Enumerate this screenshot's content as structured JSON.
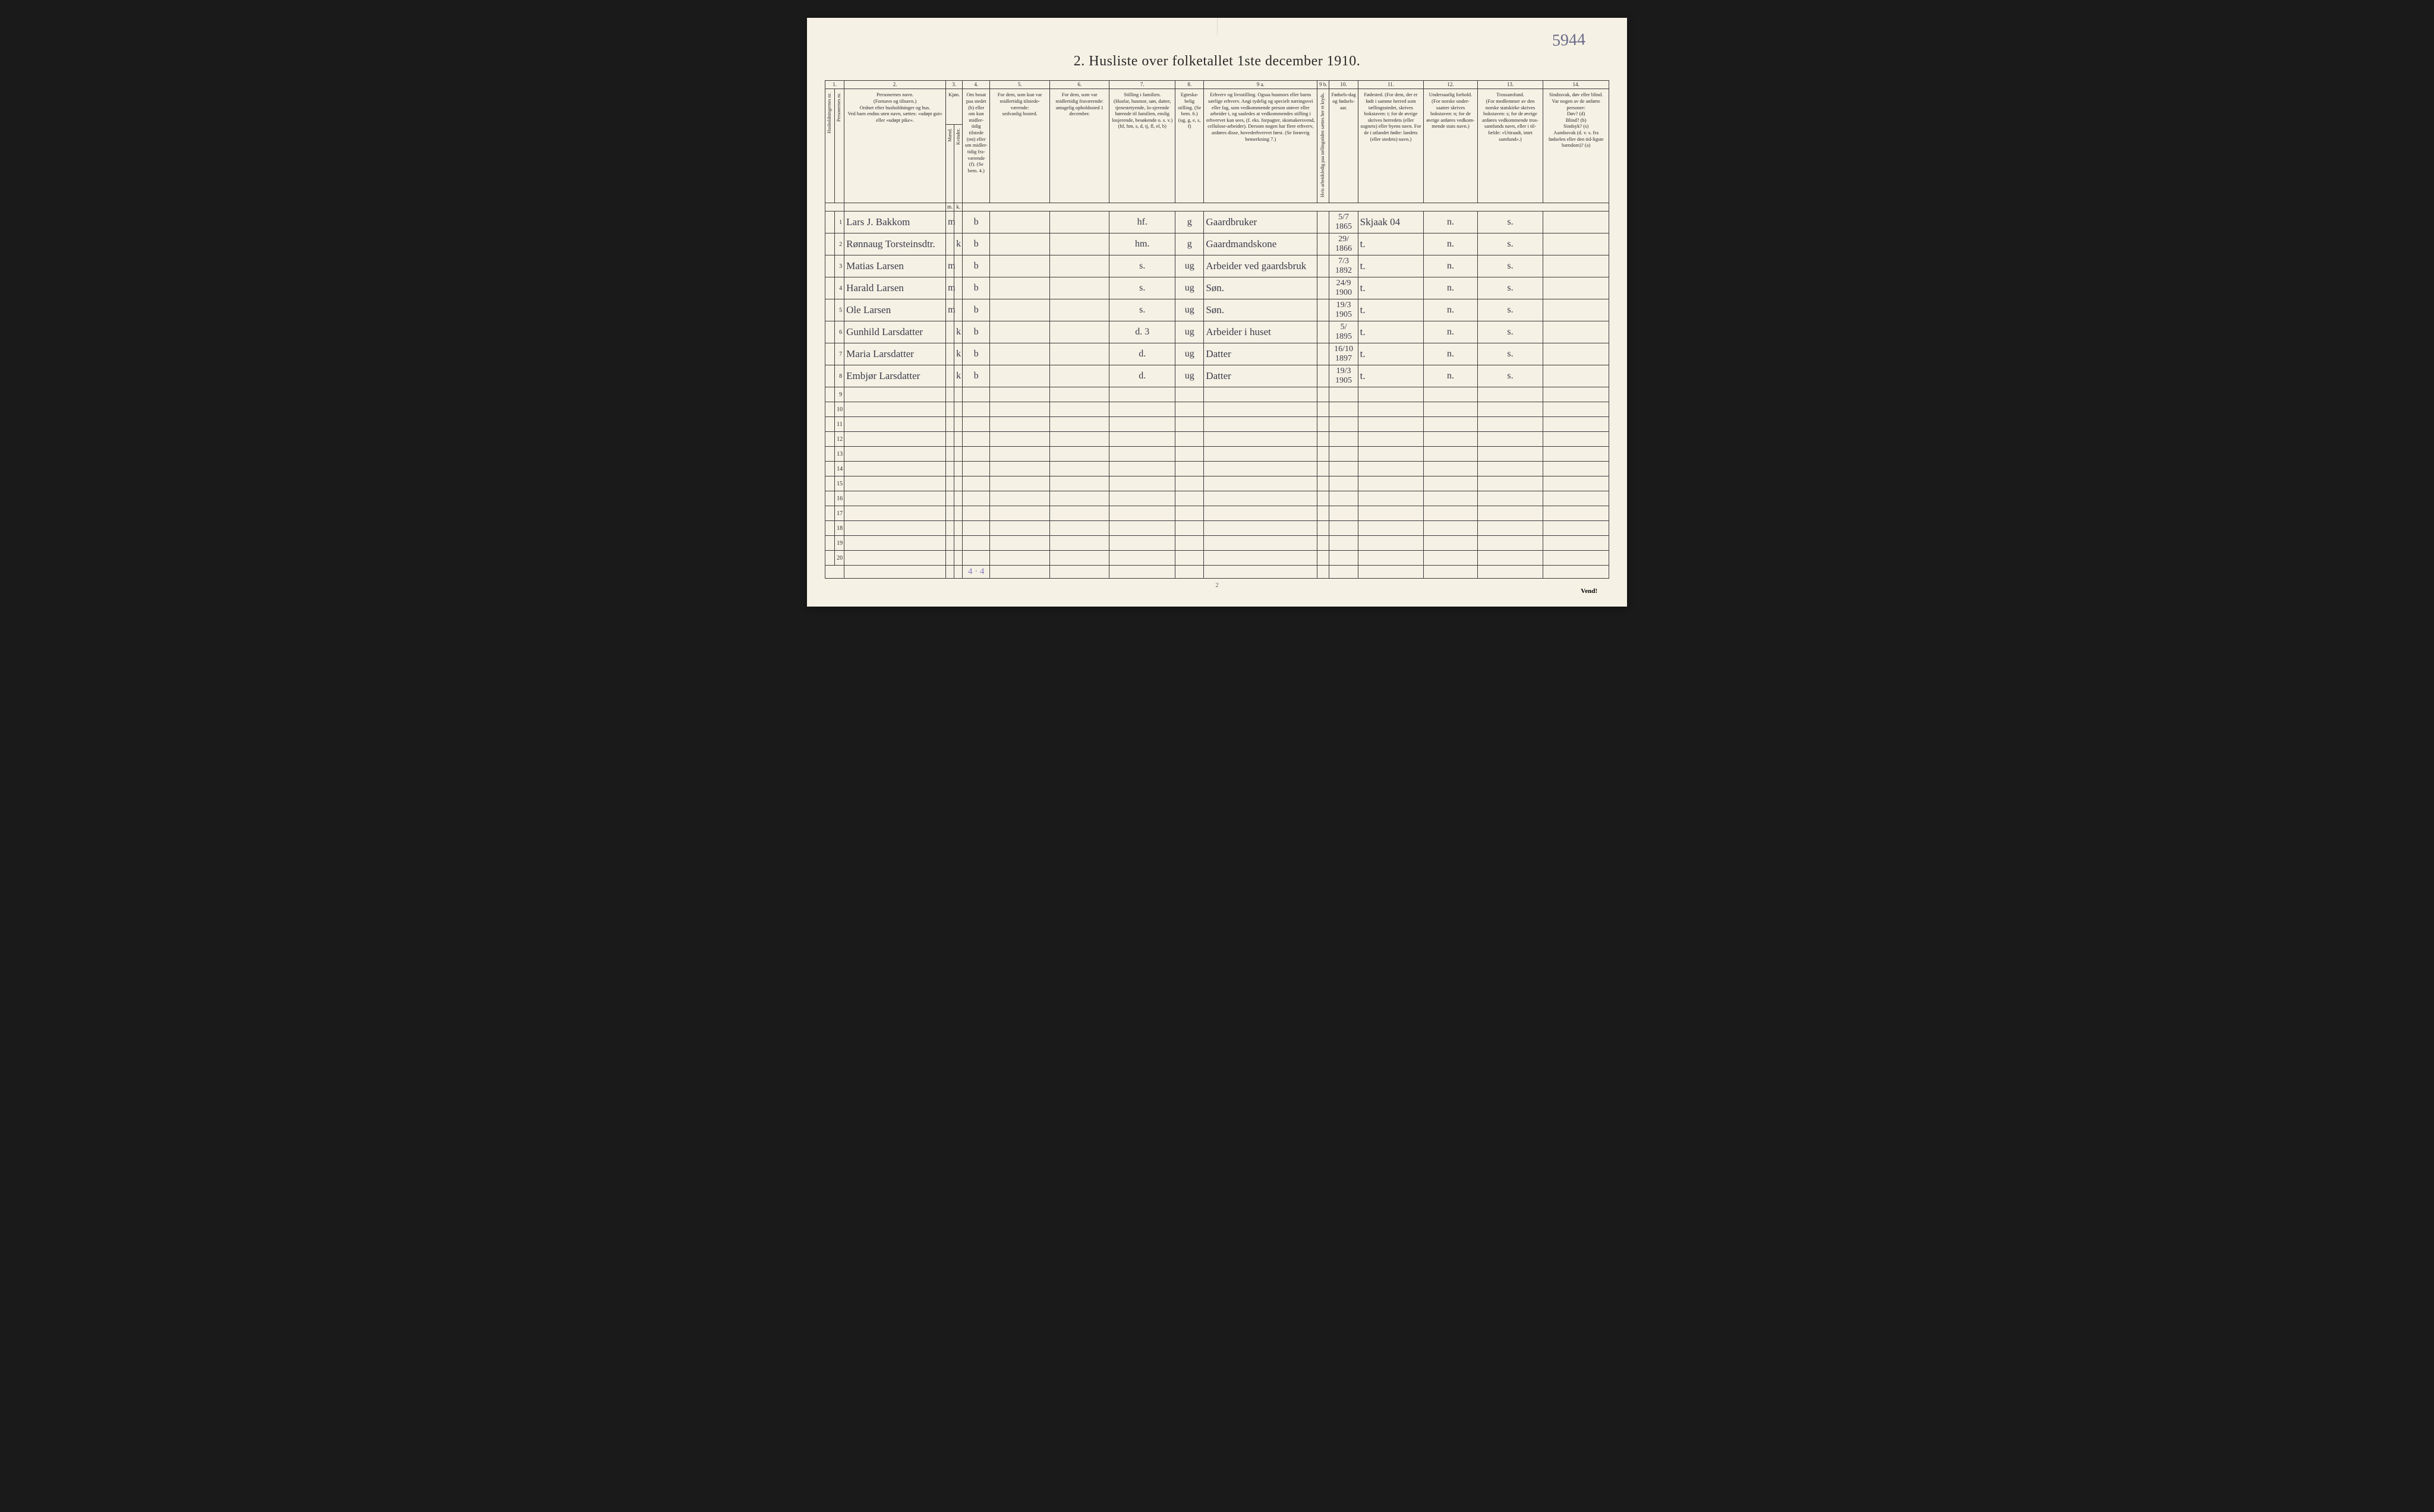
{
  "page": {
    "title": "2.  Husliste over folketallet 1ste december 1910.",
    "handwritten_number_topright": "5944",
    "page_number_bottom": "2",
    "vend_label": "Vend!",
    "background_color": "#f5f1e4",
    "border_color": "#3a3a3a",
    "handwriting_color": "#3a3a4a",
    "pencil_color": "#8a7ac0"
  },
  "column_numbers": [
    "1.",
    "2.",
    "3.",
    "4.",
    "5.",
    "6.",
    "7.",
    "8.",
    "9 a.",
    "9 b.",
    "10.",
    "11.",
    "12.",
    "13.",
    "14."
  ],
  "headers": {
    "c1a": "Husholdningernes nr.",
    "c1b": "Personernes nr.",
    "c2": "Personernes navn.\n(Fornavn og tilnavn.)\nOrdnet efter husholdninger og hus.\nVed barn endnu uten navn, sættes: «udøpt gut» eller «udøpt pike».",
    "c3": "Kjøn.",
    "c3a": "Mænd.",
    "c3b": "Kvinder.",
    "c3m": "m.",
    "c3k": "k.",
    "c4": "Om bosat paa stedet (b) eller om kun midler-tidig tilstede (mt) eller om midler-tidig fra-værende (f). (Se bem. 4.)",
    "c5": "For dem, som kun var midlertidig tilstede-værende:\nsedvanlig bosted.",
    "c6": "For dem, som var midlertidig fraværende:\nantagelig opholdssted 1 december.",
    "c7": "Stilling i familien.\n(Husfar, husmor, søn, datter, tjenestetyende, lo-sjerende hørende til familien, enslig losjerende, besøkende o. s. v.)\n(hf, hm, s, d, tj, fl, el, b)",
    "c8": "Egteska-belig stilling. (Se bem. 6.) (ug, g, e, s, f)",
    "c9a": "Erhverv og livsstilling.\nOgsaa husmors eller barns særlige erhverv. Angi tydelig og specielt næringsvei eller fag, som vedkommende person utøver eller arbeider i, og saaledes at vedkommendes stilling i erhvervet kan sees, (f. eks. forpagter, skomakersvend, cellulose-arbeider). Dersom nogen har flere erhverv, anføres disse, hovederhvervet først. (Se forøvrig bemerkning 7.)",
    "c9b": "Hvis arbeidsledig paa tællingstiden sættes her et kryds.",
    "c10": "Fødsels-dag og fødsels-aar.",
    "c11": "Fødested.\n(For dem, der er født i samme herred som tællingsstedet, skrives bokstaven: t; for de øvrige skrives herredets (eller sognets) eller byens navn. For de i utlandet fødte: landets (eller stedets) navn.)",
    "c12": "Undersaatlig forhold.\n(For norske under-saatter skrives bokstaven: n; for de øvrige anføres vedkom-mende stats navn.)",
    "c13": "Trossamfund.\n(For medlemmer av den norske statskirke skrives bokstaven: s; for de øvrige anføres vedkommende tros-samfunds navn, eller i til-fælde: «Uttraadt, intet samfund».)",
    "c14": "Sindssvak, døv eller blind.\nVar nogen av de anførte personer:\nDøv?        (d)\nBlind?      (b)\nSindsyk?  (s)\nAandssvak (d. v. s. fra fødselen eller den tid-ligste barndom)?  (a)"
  },
  "col_widths": {
    "c1a": 16,
    "c1b": 16,
    "c2": 170,
    "c3a": 14,
    "c3b": 14,
    "c4": 46,
    "c5": 100,
    "c6": 100,
    "c7": 110,
    "c8": 48,
    "c9a": 190,
    "c9b": 20,
    "c10": 48,
    "c11": 110,
    "c12": 90,
    "c13": 110,
    "c14": 110
  },
  "rows": [
    {
      "n": "1",
      "name": "Lars J. Bakkom",
      "m": "m",
      "k": "",
      "b": "b",
      "c5": "",
      "c6": "",
      "c7": "hf.",
      "c8": "g",
      "c9a": "Gaardbruker",
      "c9b": "",
      "c10": "5/7 1865",
      "c11": "Skjaak 04",
      "c12": "n.",
      "c13": "s.",
      "c14": ""
    },
    {
      "n": "2",
      "name": "Rønnaug Torsteinsdtr.",
      "m": "",
      "k": "k",
      "b": "b",
      "c5": "",
      "c6": "",
      "c7": "hm.",
      "c8": "g",
      "c9a": "Gaardmandskone",
      "c9b": "",
      "c10": "29/ 1866",
      "c11": "t.",
      "c12": "n.",
      "c13": "s.",
      "c14": ""
    },
    {
      "n": "3",
      "name": "Matias Larsen",
      "m": "m",
      "k": "",
      "b": "b",
      "c5": "",
      "c6": "",
      "c7": "s.",
      "c8": "ug",
      "c9a": "Arbeider ved gaardsbruk",
      "c9b": "",
      "c10": "7/3 1892",
      "c11": "t.",
      "c12": "n.",
      "c13": "s.",
      "c14": ""
    },
    {
      "n": "4",
      "name": "Harald Larsen",
      "m": "m",
      "k": "",
      "b": "b",
      "c5": "",
      "c6": "",
      "c7": "s.",
      "c8": "ug",
      "c9a": "Søn.",
      "c9b": "",
      "c10": "24/9 1900",
      "c11": "t.",
      "c12": "n.",
      "c13": "s.",
      "c14": ""
    },
    {
      "n": "5",
      "name": "Ole Larsen",
      "m": "m",
      "k": "",
      "b": "b",
      "c5": "",
      "c6": "",
      "c7": "s.",
      "c8": "ug",
      "c9a": "Søn.",
      "c9b": "",
      "c10": "19/3 1905",
      "c11": "t.",
      "c12": "n.",
      "c13": "s.",
      "c14": ""
    },
    {
      "n": "6",
      "name": "Gunhild Larsdatter",
      "m": "",
      "k": "k",
      "b": "b",
      "c5": "",
      "c6": "",
      "c7": "d.    3",
      "c8": "ug",
      "c9a": "Arbeider i huset",
      "c9b": "",
      "c10": "5/ 1895",
      "c11": "t.",
      "c12": "n.",
      "c13": "s.",
      "c14": ""
    },
    {
      "n": "7",
      "name": "Maria Larsdatter",
      "m": "",
      "k": "k",
      "b": "b",
      "c5": "",
      "c6": "",
      "c7": "d.",
      "c8": "ug",
      "c9a": "Datter",
      "c9b": "",
      "c10": "16/10 1897",
      "c11": "t.",
      "c12": "n.",
      "c13": "s.",
      "c14": ""
    },
    {
      "n": "8",
      "name": "Embjør Larsdatter",
      "m": "",
      "k": "k",
      "b": "b",
      "c5": "",
      "c6": "",
      "c7": "d.",
      "c8": "ug",
      "c9a": "Datter",
      "c9b": "",
      "c10": "19/3 1905",
      "c11": "t.",
      "c12": "n.",
      "c13": "s.",
      "c14": ""
    },
    {
      "n": "9"
    },
    {
      "n": "10"
    },
    {
      "n": "11"
    },
    {
      "n": "12"
    },
    {
      "n": "13"
    },
    {
      "n": "14"
    },
    {
      "n": "15"
    },
    {
      "n": "16"
    },
    {
      "n": "17"
    },
    {
      "n": "18"
    },
    {
      "n": "19"
    },
    {
      "n": "20"
    }
  ],
  "footer_annotation": "4 · 4"
}
